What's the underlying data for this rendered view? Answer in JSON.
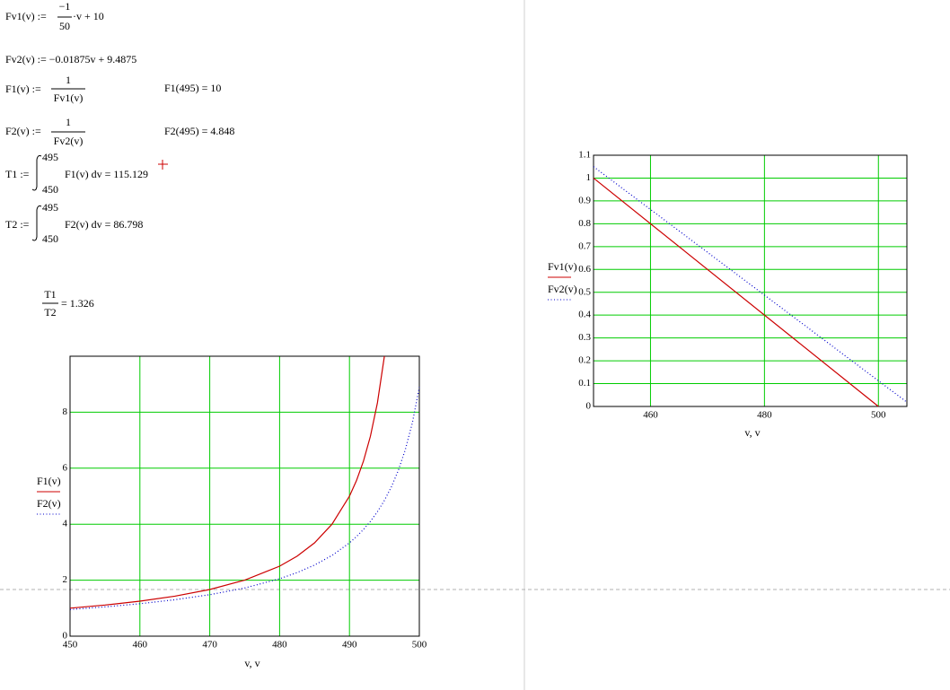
{
  "worksheet": {
    "fv1": {
      "lhs": "Fv1(v) :=",
      "num": "−1",
      "den": "50",
      "rest": "·v + 10"
    },
    "fv2": "Fv2(v) := −0.01875v + 9.4875",
    "f1": {
      "lhs": "F1(v) :=",
      "num": "1",
      "den": "Fv1(v)",
      "result": "F1(495) = 10"
    },
    "f2": {
      "lhs": "F2(v) :=",
      "num": "1",
      "den": "Fv2(v)",
      "result": "F2(495) = 4.848"
    },
    "t1": {
      "lhs": "T1 :=",
      "upper": "495",
      "lower": "450",
      "body": "F1(v) dv = 115.129"
    },
    "t2": {
      "lhs": "T2 :=",
      "upper": "495",
      "lower": "450",
      "body": "F2(v) dv = 86.798"
    },
    "ratio": {
      "num": "T1",
      "den": "T2",
      "result": "= 1.326"
    }
  },
  "chart_data": [
    {
      "type": "line",
      "x_label": "v, v",
      "x": [
        450,
        455,
        460,
        465,
        470,
        475,
        480,
        482.5,
        485,
        487.5,
        490,
        491,
        492,
        493,
        494,
        495,
        496,
        497,
        498,
        499,
        500
      ],
      "series": [
        {
          "name": "F1(v)",
          "color": "#cc0000",
          "dash": "solid",
          "values": [
            1,
            1.111,
            1.25,
            1.429,
            1.667,
            2,
            2.5,
            2.857,
            3.333,
            4,
            5,
            5.556,
            6.25,
            7.143,
            8.333,
            10,
            null,
            null,
            null,
            null,
            null
          ]
        },
        {
          "name": "F2(v)",
          "color": "#0000cc",
          "dash": "dotted",
          "values": [
            0.952,
            1.046,
            1.159,
            1.301,
            1.481,
            1.72,
            2.051,
            2.27,
            2.54,
            2.883,
            3.333,
            3.556,
            3.81,
            4.103,
            4.444,
            4.848,
            5.333,
            5.926,
            6.667,
            7.619,
            8.889
          ]
        }
      ],
      "xlim": [
        450,
        500
      ],
      "xticks": [
        450,
        460,
        470,
        480,
        490,
        500
      ],
      "ylim": [
        0,
        10
      ],
      "yticks": [
        0,
        2,
        4,
        6,
        8
      ],
      "grid": true,
      "grid_color": "#00cc00"
    },
    {
      "type": "line",
      "x_label": "v, v",
      "x": [
        450,
        500,
        505
      ],
      "series": [
        {
          "name": "Fv1(v)",
          "color": "#cc0000",
          "dash": "solid",
          "values": [
            1,
            0,
            null
          ]
        },
        {
          "name": "Fv2(v)",
          "color": "#0000cc",
          "dash": "dotted",
          "values": [
            1.05,
            0.1125,
            0.01875
          ]
        }
      ],
      "xlim": [
        450,
        505
      ],
      "xticks": [
        460,
        480,
        500
      ],
      "ylim": [
        0,
        1.1
      ],
      "yticks": [
        0,
        0.1,
        0.2,
        0.3,
        0.4,
        0.5,
        0.6,
        0.7,
        0.8,
        0.9,
        1,
        1.1
      ],
      "grid": true,
      "grid_color": "#00cc00"
    }
  ]
}
